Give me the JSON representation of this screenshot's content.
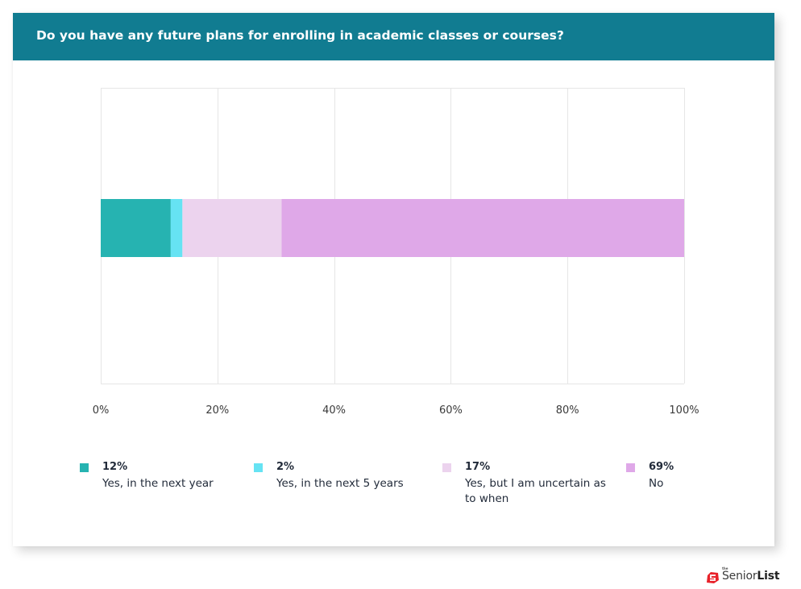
{
  "header": {
    "title": "Do you have any future plans for enrolling in academic classes or courses?"
  },
  "colors": {
    "header_bg": "#117c91",
    "grid": "#e6e6e6",
    "series": [
      "#26b3b1",
      "#66e3f3",
      "#ecd3ee",
      "#dfa8e8"
    ]
  },
  "chart_data": {
    "type": "bar",
    "orientation": "horizontal",
    "stacked": true,
    "title": "Do you have any future plans for enrolling in academic classes or courses?",
    "xlabel": "",
    "ylabel": "",
    "xlim": [
      0,
      100
    ],
    "x_ticks": [
      "0%",
      "20%",
      "40%",
      "60%",
      "80%",
      "100%"
    ],
    "grid": true,
    "legend_position": "bottom",
    "series": [
      {
        "name": "Yes, in the next year",
        "value": 12,
        "label": "12%"
      },
      {
        "name": "Yes, in the next 5 years",
        "value": 2,
        "label": "2%"
      },
      {
        "name": "Yes, but I am uncertain as to when",
        "value": 17,
        "label": "17%"
      },
      {
        "name": "No",
        "value": 69,
        "label": "69%"
      }
    ]
  },
  "brand": {
    "the": "the",
    "name_regular": "Senior",
    "name_bold": "List"
  }
}
